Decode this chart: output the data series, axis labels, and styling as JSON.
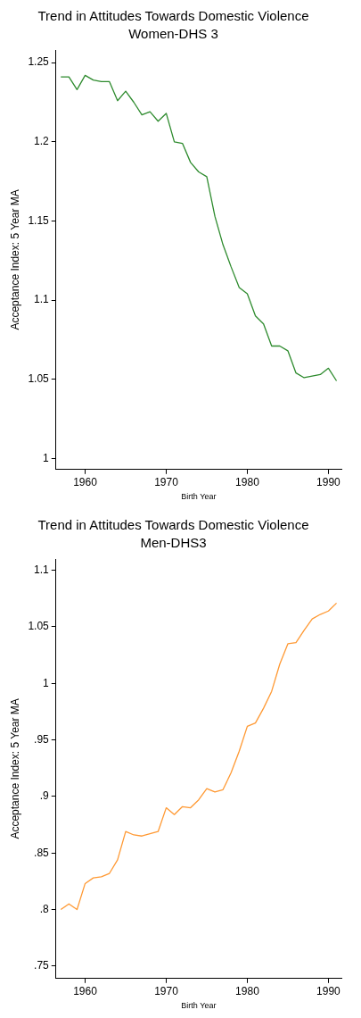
{
  "chart_data": [
    {
      "type": "line",
      "title": "Trend in Attitudes Towards Domestic Violence",
      "subtitle": "Women-DHS 3",
      "xlabel": "Birth Year",
      "ylabel": "Acceptance Index: 5 Year MA",
      "x": [
        1957,
        1958,
        1959,
        1960,
        1961,
        1962,
        1963,
        1964,
        1965,
        1966,
        1967,
        1968,
        1969,
        1970,
        1971,
        1972,
        1973,
        1974,
        1975,
        1976,
        1977,
        1978,
        1979,
        1980,
        1981,
        1982,
        1983,
        1984,
        1985,
        1986,
        1987,
        1988,
        1989,
        1990,
        1991
      ],
      "series": [
        {
          "color": "#2e8b2e",
          "values": [
            1.241,
            1.241,
            1.233,
            1.242,
            1.239,
            1.238,
            1.238,
            1.226,
            1.232,
            1.225,
            1.217,
            1.219,
            1.213,
            1.218,
            1.2,
            1.199,
            1.187,
            1.181,
            1.178,
            1.153,
            1.135,
            1.121,
            1.108,
            1.104,
            1.09,
            1.085,
            1.071,
            1.071,
            1.068,
            1.054,
            1.051,
            1.052,
            1.053,
            1.057,
            1.049
          ]
        }
      ],
      "xlim": [
        1956.4,
        1991.6
      ],
      "xticks": [
        1960,
        1970,
        1980,
        1990
      ],
      "ylim": [
        0.993,
        1.258
      ],
      "yticks": [
        1,
        1.05,
        1.1,
        1.15,
        1.2,
        1.25
      ],
      "grid": false,
      "legend": false,
      "marker": "none",
      "line_style": "solid"
    },
    {
      "type": "line",
      "title": "Trend in Attitudes Towards Domestic Violence",
      "subtitle": "Men-DHS3",
      "xlabel": "Birth Year",
      "ylabel": "Acceptance Index: 5 Year MA",
      "x": [
        1957,
        1958,
        1959,
        1960,
        1961,
        1962,
        1963,
        1964,
        1965,
        1966,
        1967,
        1968,
        1969,
        1970,
        1971,
        1972,
        1973,
        1974,
        1975,
        1976,
        1977,
        1978,
        1979,
        1980,
        1981,
        1982,
        1983,
        1984,
        1985,
        1986,
        1987,
        1988,
        1989,
        1990,
        1991
      ],
      "series": [
        {
          "color": "#ff9933",
          "values": [
            0.8,
            0.805,
            0.8,
            0.823,
            0.828,
            0.829,
            0.832,
            0.844,
            0.869,
            0.866,
            0.865,
            0.867,
            0.869,
            0.89,
            0.884,
            0.891,
            0.89,
            0.897,
            0.907,
            0.904,
            0.906,
            0.921,
            0.94,
            0.962,
            0.965,
            0.978,
            0.993,
            1.017,
            1.035,
            1.036,
            1.047,
            1.057,
            1.061,
            1.064,
            1.071
          ]
        }
      ],
      "xlim": [
        1956.4,
        1991.6
      ],
      "xticks": [
        1960,
        1970,
        1980,
        1990
      ],
      "ylim": [
        0.739,
        1.11
      ],
      "yticks": [
        {
          "value": 0.75,
          "label": ".75"
        },
        {
          "value": 0.8,
          "label": ".8"
        },
        {
          "value": 0.85,
          "label": ".85"
        },
        {
          "value": 0.9,
          "label": ".9"
        },
        {
          "value": 0.95,
          "label": ".95"
        },
        1,
        1.05,
        1.1
      ],
      "grid": false,
      "legend": false,
      "marker": "none",
      "line_style": "solid"
    }
  ]
}
